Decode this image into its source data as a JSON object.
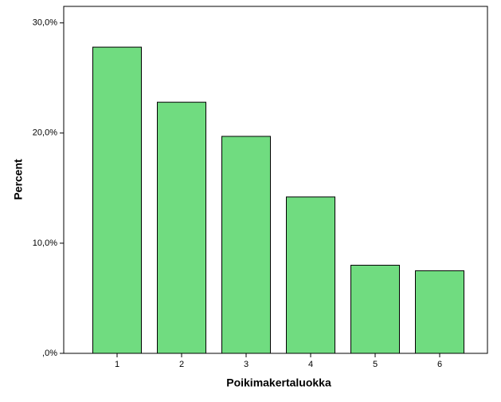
{
  "chart_data": {
    "type": "bar",
    "x_label": "Poikimakertaluokka",
    "y_label": "Percent",
    "categories": [
      "1",
      "2",
      "3",
      "4",
      "5",
      "6"
    ],
    "values": [
      27.8,
      22.8,
      19.7,
      14.2,
      8.0,
      7.5
    ],
    "color": "#70dc80",
    "ylim": [
      0,
      31.5
    ],
    "yticks": [
      {
        "value": 0,
        "label": ",0%"
      },
      {
        "value": 10,
        "label": "10,0%"
      },
      {
        "value": 20,
        "label": "20,0%"
      },
      {
        "value": 30,
        "label": "30,0%"
      }
    ]
  }
}
